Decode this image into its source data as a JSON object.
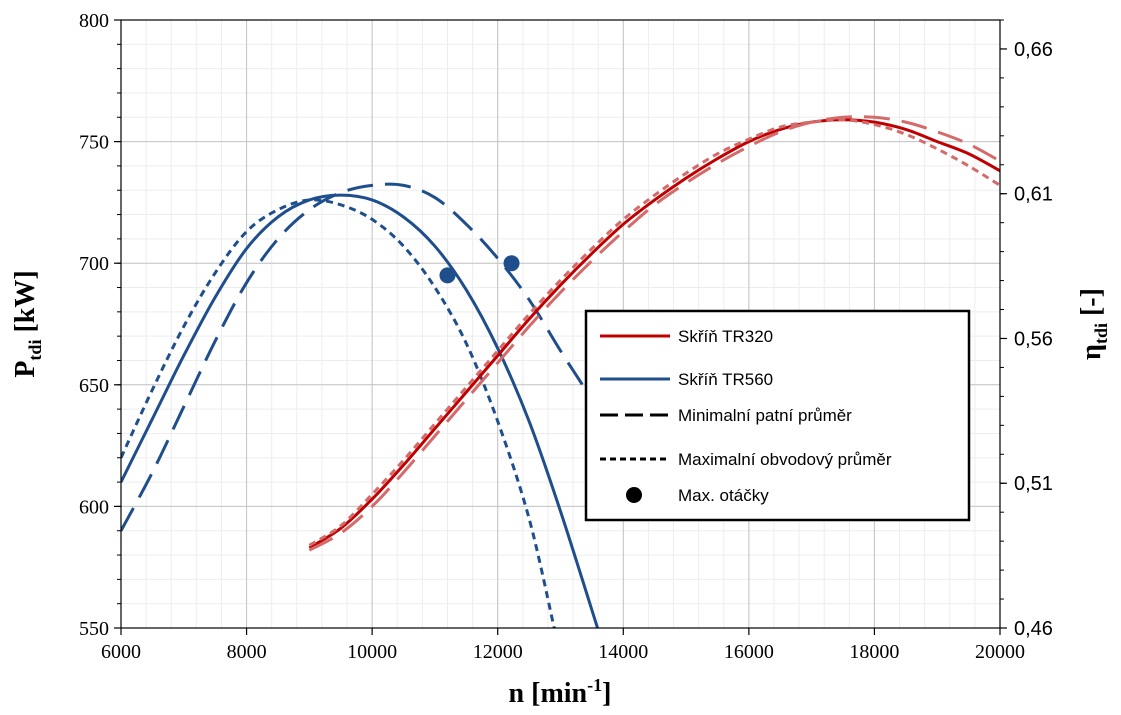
{
  "chart_data": {
    "type": "line",
    "title": "",
    "xlabel": {
      "main": "n [min",
      "sup": "-1",
      "tail": "]"
    },
    "ylabel_left": {
      "main": "P",
      "sub": "tdi",
      "tail": " [kW]"
    },
    "ylabel_right": {
      "main": "η",
      "sub": "tdi",
      "tail": " [-]"
    },
    "xlim": [
      6000,
      20000
    ],
    "ylim_left": [
      550,
      800
    ],
    "ylim_right": [
      0.46,
      0.67
    ],
    "x_ticks": [
      6000,
      8000,
      10000,
      12000,
      14000,
      16000,
      18000,
      20000
    ],
    "x_tick_labels": [
      "6000",
      "8000",
      "10000",
      "12000",
      "14000",
      "16000",
      "18000",
      "20000"
    ],
    "y_left_ticks": [
      550,
      600,
      650,
      700,
      750,
      800
    ],
    "y_left_tick_labels": [
      "550",
      "600",
      "650",
      "700",
      "750",
      "800"
    ],
    "y_right_ticks": [
      0.46,
      0.51,
      0.56,
      0.61,
      0.66
    ],
    "y_right_tick_labels": [
      "0,46",
      "0,51",
      "0,56",
      "0,61",
      "0,66"
    ],
    "grid": true,
    "legend_position": "center-right",
    "legend": [
      {
        "label": "Skříň TR320",
        "style": "solid",
        "color": "#c00000"
      },
      {
        "label": "Skříň TR560",
        "style": "solid",
        "color": "#1f4e8c"
      },
      {
        "label": "Minimalní patní průměr",
        "style": "long-dash",
        "color": "#000000"
      },
      {
        "label": "Maximalní obvodový průměr",
        "style": "short-dash",
        "color": "#000000"
      },
      {
        "label": "Max. otáčky",
        "style": "marker",
        "color": "#000000"
      }
    ],
    "series": [
      {
        "housing": "TR560",
        "variant": "solid",
        "color": "#1f4e8c",
        "axis": "left",
        "x": [
          6000,
          6500,
          7000,
          7500,
          8000,
          8500,
          9000,
          9500,
          10000,
          10500,
          11000,
          11500,
          12000,
          12500,
          13000,
          13590
        ],
        "y": [
          610,
          636,
          662,
          686,
          706,
          719,
          726,
          728,
          726,
          719,
          707,
          689,
          665,
          635,
          598,
          550
        ]
      },
      {
        "housing": "TR560",
        "variant": "long-dash",
        "color": "#1f4e8c",
        "axis": "left",
        "x": [
          6000,
          6500,
          7000,
          7500,
          8000,
          8500,
          9000,
          9500,
          10000,
          10500,
          11000,
          11500,
          12000,
          12500,
          13000,
          13400
        ],
        "y": [
          590,
          614,
          641,
          668,
          692,
          710,
          722,
          729,
          732,
          732,
          727,
          716,
          702,
          685,
          664,
          648
        ]
      },
      {
        "housing": "TR560",
        "variant": "short-dash",
        "color": "#1f4e8c",
        "axis": "left",
        "x": [
          6000,
          6500,
          7000,
          7500,
          8000,
          8500,
          9000,
          9500,
          10000,
          10500,
          11000,
          11500,
          12000,
          12500,
          12900
        ],
        "y": [
          620,
          648,
          674,
          696,
          713,
          722,
          726,
          724,
          718,
          707,
          690,
          667,
          635,
          595,
          550
        ]
      },
      {
        "housing": "TR320",
        "variant": "solid",
        "color": "#c00000",
        "axis": "left",
        "x": [
          9000,
          9500,
          10000,
          10500,
          11000,
          11500,
          12000,
          12500,
          13000,
          13500,
          14000,
          14500,
          15000,
          15500,
          16000,
          16500,
          17000,
          17500,
          18000,
          18500,
          19000,
          19500,
          20000
        ],
        "y": [
          583,
          591,
          603,
          617,
          632,
          647,
          662,
          677,
          691,
          704,
          716,
          726,
          735,
          743,
          750,
          755,
          758,
          759,
          758,
          755,
          750,
          745,
          738
        ]
      },
      {
        "housing": "TR320",
        "variant": "long-dash",
        "color": "#d46a6a",
        "axis": "left",
        "x": [
          9000,
          9500,
          10000,
          10500,
          11000,
          11500,
          12000,
          12500,
          13000,
          13500,
          14000,
          14500,
          15000,
          15500,
          16000,
          16500,
          17000,
          17500,
          18000,
          18500,
          19000,
          19500,
          20000
        ],
        "y": [
          582,
          589,
          600,
          614,
          629,
          644,
          659,
          674,
          688,
          701,
          713,
          724,
          733,
          741,
          748,
          754,
          758,
          760,
          760,
          758,
          754,
          749,
          742
        ]
      },
      {
        "housing": "TR320",
        "variant": "short-dash",
        "color": "#d46a6a",
        "axis": "left",
        "x": [
          9000,
          9500,
          10000,
          10500,
          11000,
          11500,
          12000,
          12500,
          13000,
          13500,
          14000,
          14500,
          15000,
          15500,
          16000,
          16500,
          17000,
          17500,
          18000,
          18500,
          19000,
          19500,
          20000
        ],
        "y": [
          584,
          592,
          605,
          619,
          634,
          649,
          664,
          679,
          693,
          706,
          718,
          728,
          737,
          745,
          751,
          756,
          758,
          759,
          757,
          753,
          747,
          740,
          732
        ]
      }
    ],
    "markers": [
      {
        "x": 11200,
        "y": 695,
        "color": "#1f4e8c"
      },
      {
        "x": 12220,
        "y": 700,
        "color": "#1f4e8c"
      }
    ]
  }
}
